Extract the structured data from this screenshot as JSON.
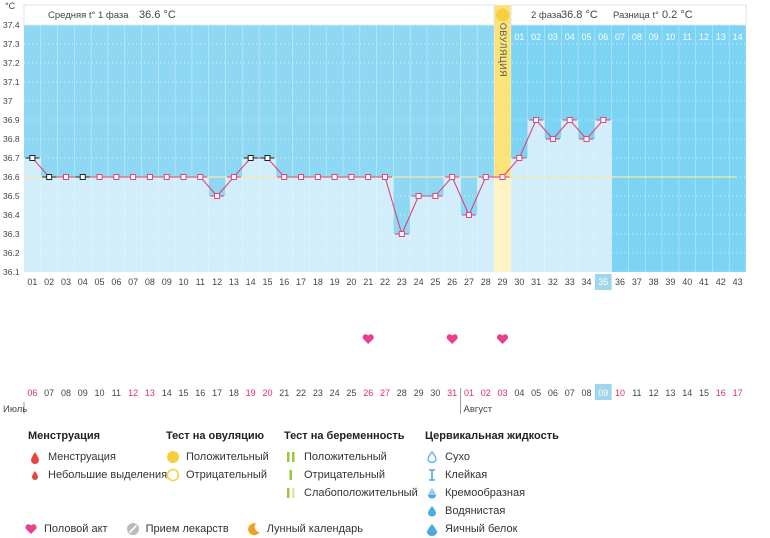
{
  "header": {
    "unit": "°C",
    "phase1_label": "Средняя t° 1 фаза",
    "phase1_value": "36.6 °C",
    "phase2_label": "2 фаза",
    "phase2_value": "36.8 °C",
    "diff_label": "Разница t°",
    "diff_value": "0.2 °C",
    "ovulation_label": "ОВУЛЯЦИЯ"
  },
  "chart_data": {
    "type": "line",
    "ylim": [
      36.1,
      37.4
    ],
    "yticks": [
      "37.4",
      "37.3",
      "37.2",
      "37.1",
      "37",
      "36.9",
      "36.8",
      "36.7",
      "36.6",
      "36.5",
      "36.4",
      "36.3",
      "36.2",
      "36.1"
    ],
    "cycle_days": [
      "01",
      "02",
      "03",
      "04",
      "05",
      "06",
      "07",
      "08",
      "09",
      "10",
      "11",
      "12",
      "13",
      "14",
      "15",
      "16",
      "17",
      "18",
      "19",
      "20",
      "21",
      "22",
      "23",
      "24",
      "25",
      "26",
      "27",
      "28",
      "29",
      "30",
      "31",
      "32",
      "33",
      "34",
      "35",
      "36",
      "37",
      "38",
      "39",
      "40",
      "41",
      "42",
      "43"
    ],
    "phase2_days": [
      "01",
      "02",
      "03",
      "04",
      "05",
      "06",
      "07",
      "08",
      "09",
      "10",
      "11",
      "12",
      "13",
      "14"
    ],
    "temperatures": [
      36.7,
      36.6,
      36.6,
      36.6,
      36.6,
      36.6,
      36.6,
      36.6,
      36.6,
      36.6,
      36.6,
      36.5,
      36.6,
      36.7,
      36.7,
      36.6,
      36.6,
      36.6,
      36.6,
      36.6,
      36.6,
      36.6,
      36.3,
      36.5,
      36.5,
      36.6,
      36.4,
      36.6,
      36.6,
      36.7,
      36.9,
      36.8,
      36.9,
      36.8,
      36.9
    ],
    "ovulation_day": 29,
    "current_day": 35,
    "coverline": 36.6,
    "intercourse_days": [
      21,
      26,
      29
    ],
    "dates": [
      "06",
      "07",
      "08",
      "09",
      "10",
      "11",
      "12",
      "13",
      "14",
      "15",
      "16",
      "17",
      "18",
      "19",
      "20",
      "21",
      "22",
      "23",
      "24",
      "25",
      "26",
      "27",
      "28",
      "29",
      "30",
      "31",
      "01",
      "02",
      "03",
      "04",
      "05",
      "06",
      "07",
      "08",
      "09",
      "10",
      "11",
      "12",
      "13",
      "14",
      "15",
      "16",
      "17"
    ],
    "weekend_days": [
      1,
      7,
      8,
      14,
      15,
      21,
      22,
      26,
      27,
      28,
      29,
      35,
      36,
      42,
      43
    ],
    "month1": "Июль",
    "month2": "Август",
    "month2_start_index": 27
  },
  "colors": {
    "phase1_fill": "#8fd8f4",
    "phase2_fill": "#7dd3f3",
    "bar_fill": "#d2eefb",
    "line": "#e0427a",
    "ovulation": "#fbe37a",
    "coverline": "#f5e8a8",
    "weekend": "#e0305a",
    "today": "#9fd6ec"
  },
  "legend": {
    "menstruation": {
      "title": "Менструация",
      "items": [
        "Менструация",
        "Небольшие выделения"
      ]
    },
    "ovulation_test": {
      "title": "Тест на овуляцию",
      "items": [
        "Положительный",
        "Отрицательный"
      ]
    },
    "pregnancy_test": {
      "title": "Тест на беременность",
      "items": [
        "Положительный",
        "Отрицательный",
        "Слабоположительный"
      ]
    },
    "cervical": {
      "title": "Цервикальная жидкость",
      "items": [
        "Сухо",
        "Клейкая",
        "Кремообразная",
        "Водянистая",
        "Яичный белок"
      ]
    },
    "bottom": [
      "Половой акт",
      "Прием лекарств",
      "Лунный календарь"
    ]
  }
}
